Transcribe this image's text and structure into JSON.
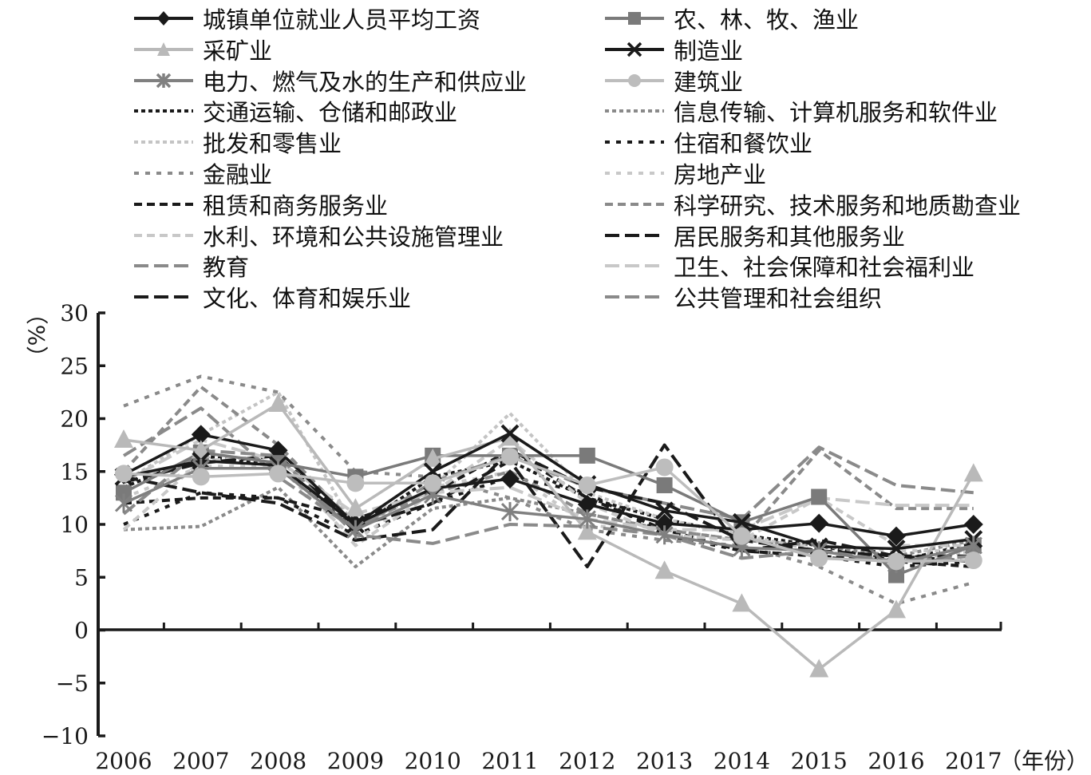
{
  "chart_data": {
    "type": "line",
    "title": "",
    "xlabel": "（年份）",
    "ylabel": "（%）",
    "ylim": [
      -10,
      30
    ],
    "yticks": [
      30,
      25,
      20,
      15,
      10,
      5,
      0,
      -5,
      -10
    ],
    "ytick_labels": [
      "30",
      "25",
      "20",
      "15",
      "10",
      "5",
      "0",
      "−5",
      "−10"
    ],
    "grid": false,
    "legend_position": "top, two columns",
    "categories": [
      "2006",
      "2007",
      "2008",
      "2009",
      "2010",
      "2011",
      "2012",
      "2013",
      "2014",
      "2015",
      "2016",
      "2017"
    ],
    "series": [
      {
        "name": "城镇单位就业人员平均工资",
        "color": "#1a1a1a",
        "dash": "solid",
        "marker": "diamond",
        "values": [
          14.7,
          18.5,
          17.0,
          10.0,
          13.4,
          14.3,
          11.9,
          10.1,
          9.5,
          10.1,
          8.9,
          10.0
        ]
      },
      {
        "name": "农、林、牧、渔业",
        "color": "#7a7a7a",
        "dash": "solid",
        "marker": "square",
        "values": [
          13.0,
          16.8,
          15.8,
          14.5,
          16.5,
          16.5,
          16.5,
          13.7,
          10.2,
          12.6,
          5.2,
          8.0
        ]
      },
      {
        "name": "采矿业",
        "color": "#b9b9b9",
        "dash": "solid",
        "marker": "triangle",
        "values": [
          18.0,
          17.0,
          21.4,
          11.5,
          16.2,
          18.2,
          9.3,
          5.6,
          2.5,
          -3.7,
          1.9,
          14.8
        ]
      },
      {
        "name": "制造业",
        "color": "#1a1a1a",
        "dash": "solid",
        "marker": "x",
        "values": [
          14.5,
          16.0,
          15.6,
          10.0,
          15.0,
          18.6,
          13.8,
          11.3,
          10.2,
          7.9,
          7.7,
          8.6
        ]
      },
      {
        "name": "电力、燃气及水的生产和供应业",
        "color": "#808080",
        "dash": "solid",
        "marker": "asterisk",
        "values": [
          12.0,
          15.3,
          15.3,
          9.5,
          12.8,
          11.2,
          10.5,
          9.0,
          7.8,
          7.5,
          6.3,
          8.0
        ]
      },
      {
        "name": "建筑业",
        "color": "#bdbdbd",
        "dash": "solid",
        "marker": "circle",
        "values": [
          14.8,
          14.5,
          14.8,
          13.9,
          13.9,
          16.4,
          13.7,
          15.4,
          8.9,
          6.8,
          6.5,
          6.6
        ]
      },
      {
        "name": "交通运输、仓储和邮政业",
        "color": "#1a1a1a",
        "dash": "dot",
        "marker": "none",
        "values": [
          13.5,
          16.5,
          15.5,
          9.5,
          14.5,
          16.0,
          12.5,
          10.5,
          9.0,
          8.0,
          6.5,
          8.2
        ]
      },
      {
        "name": "信息传输、计算机服务和软件业",
        "color": "#8a8a8a",
        "dash": "dot",
        "marker": "none",
        "values": [
          9.5,
          9.8,
          13.5,
          6.0,
          11.5,
          12.5,
          11.0,
          9.5,
          8.5,
          8.0,
          7.0,
          8.5
        ]
      },
      {
        "name": "批发和零售业",
        "color": "#c4c4c4",
        "dash": "dot",
        "marker": "none",
        "values": [
          14.0,
          18.5,
          22.5,
          9.5,
          13.5,
          20.5,
          13.0,
          10.5,
          9.0,
          7.5,
          6.5,
          7.5
        ]
      },
      {
        "name": "住宿和餐饮业",
        "color": "#1a1a1a",
        "dash": "dash-dot",
        "marker": "none",
        "values": [
          10.0,
          13.0,
          12.5,
          9.0,
          12.0,
          14.5,
          13.0,
          9.0,
          7.5,
          7.0,
          6.0,
          6.5
        ]
      },
      {
        "name": "金融业",
        "color": "#8a8a8a",
        "dash": "dash-dot",
        "marker": "none",
        "values": [
          21.2,
          24.0,
          22.5,
          15.0,
          14.5,
          12.5,
          9.5,
          8.5,
          8.0,
          6.0,
          2.5,
          4.5
        ]
      },
      {
        "name": "房地产业",
        "color": "#c8c8c8",
        "dash": "dash-dot",
        "marker": "none",
        "values": [
          12.5,
          15.5,
          15.5,
          8.5,
          13.5,
          15.0,
          10.0,
          9.0,
          8.5,
          8.0,
          7.5,
          7.5
        ]
      },
      {
        "name": "租赁和商务服务业",
        "color": "#1a1a1a",
        "dash": "dash",
        "marker": "none",
        "values": [
          12.0,
          12.5,
          12.5,
          10.5,
          13.0,
          17.0,
          12.5,
          9.5,
          7.5,
          7.0,
          6.5,
          6.0
        ]
      },
      {
        "name": "科学研究、技术服务和地质勘查业",
        "color": "#8a8a8a",
        "dash": "dash",
        "marker": "none",
        "values": [
          15.0,
          23.0,
          17.5,
          10.0,
          13.0,
          15.0,
          11.0,
          9.5,
          8.5,
          17.0,
          11.5,
          11.5
        ]
      },
      {
        "name": "水利、环境和公共设施管理业",
        "color": "#c8c8c8",
        "dash": "dash",
        "marker": "none",
        "values": [
          9.5,
          16.0,
          16.5,
          8.0,
          13.0,
          18.0,
          12.0,
          9.0,
          8.5,
          12.5,
          8.0,
          8.0
        ]
      },
      {
        "name": "居民服务和其他服务业",
        "color": "#1a1a1a",
        "dash": "longdash",
        "marker": "none",
        "values": [
          14.0,
          15.8,
          16.5,
          9.8,
          12.0,
          16.0,
          6.0,
          17.5,
          7.5,
          8.5,
          7.0,
          6.5
        ]
      },
      {
        "name": "教育",
        "color": "#8a8a8a",
        "dash": "longdash",
        "marker": "none",
        "values": [
          16.5,
          21.0,
          14.5,
          9.5,
          14.0,
          16.5,
          13.5,
          12.0,
          10.5,
          17.3,
          13.7,
          13.0
        ]
      },
      {
        "name": "卫生、社会保障和社会福利业",
        "color": "#c8c8c8",
        "dash": "longdash",
        "marker": "none",
        "values": [
          14.0,
          18.0,
          16.0,
          11.0,
          13.0,
          13.5,
          10.5,
          9.5,
          9.5,
          12.5,
          11.8,
          11.8
        ]
      },
      {
        "name": "文化、体育和娱乐业",
        "color": "#1a1a1a",
        "dash": "longdash",
        "marker": "none",
        "values": [
          14.5,
          13.0,
          12.0,
          8.5,
          9.5,
          17.0,
          13.5,
          12.0,
          8.5,
          7.5,
          7.0,
          7.0
        ]
      },
      {
        "name": "公共管理和社会组织",
        "color": "#8a8a8a",
        "dash": "longdash",
        "marker": "none",
        "values": [
          11.0,
          17.0,
          16.5,
          9.0,
          8.2,
          10.0,
          9.8,
          9.0,
          6.8,
          7.5,
          6.5,
          7.0
        ]
      }
    ]
  },
  "legend": {
    "items": [
      {
        "label": "城镇单位就业人员平均工资"
      },
      {
        "label": "农、林、牧、渔业"
      },
      {
        "label": "采矿业"
      },
      {
        "label": "制造业"
      },
      {
        "label": "电力、燃气及水的生产和供应业"
      },
      {
        "label": "建筑业"
      },
      {
        "label": "交通运输、仓储和邮政业"
      },
      {
        "label": "信息传输、计算机服务和软件业"
      },
      {
        "label": "批发和零售业"
      },
      {
        "label": "住宿和餐饮业"
      },
      {
        "label": "金融业"
      },
      {
        "label": "房地产业"
      },
      {
        "label": "租赁和商务服务业"
      },
      {
        "label": "科学研究、技术服务和地质勘查业"
      },
      {
        "label": "水利、环境和公共设施管理业"
      },
      {
        "label": "居民服务和其他服务业"
      },
      {
        "label": "教育"
      },
      {
        "label": "卫生、社会保障和社会福利业"
      },
      {
        "label": "文化、体育和娱乐业"
      },
      {
        "label": "公共管理和社会组织"
      }
    ]
  },
  "axes": {
    "y_unit": "（%）",
    "x_unit": "（年份）"
  }
}
